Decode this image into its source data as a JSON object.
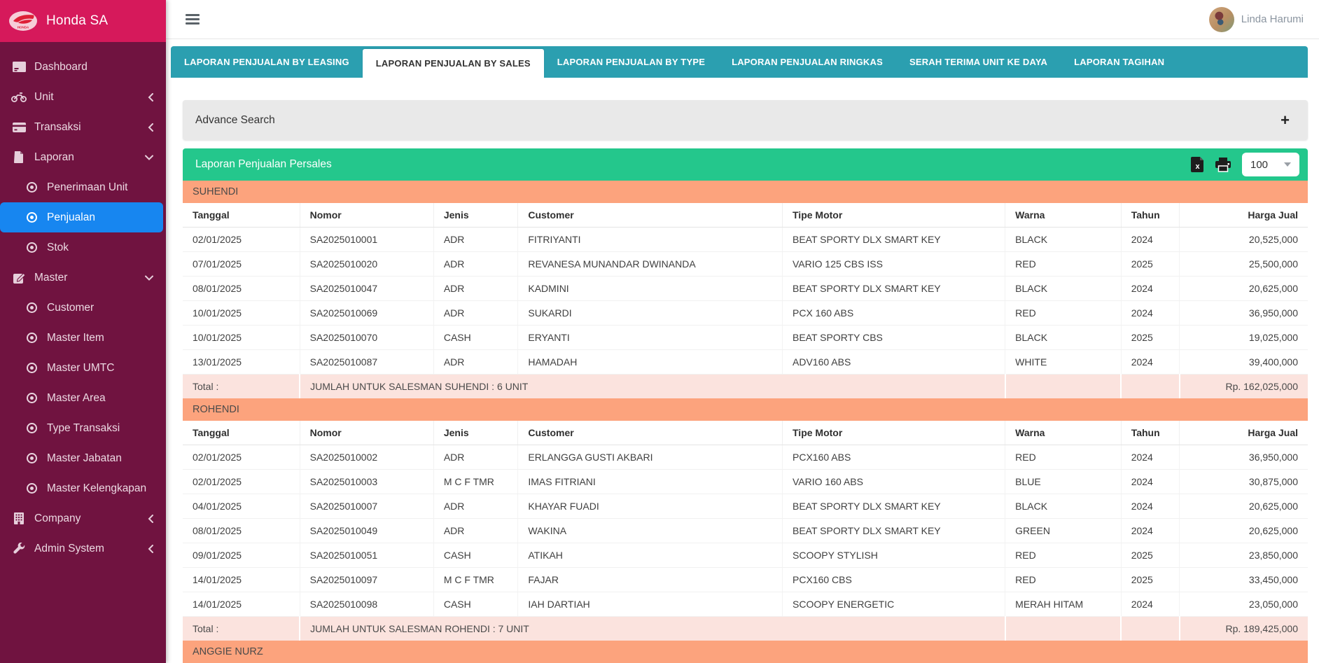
{
  "app": {
    "brand": "Honda SA",
    "user": "Linda Harumi"
  },
  "colors": {
    "sidebar": "#701340",
    "header_pink": "#d6195b",
    "active_blue": "#1786f0",
    "tab_teal": "#2b9fb0",
    "green": "#24c78c",
    "section_orange": "#fca37d",
    "total_pink": "#fbe3de"
  },
  "icons": {
    "hamburger": "menu-icon",
    "search_expand": "+",
    "export": "excel-file-icon",
    "print": "printer-icon",
    "page_size_caret": "chevron-down"
  },
  "sidebar": {
    "items": [
      {
        "label": "Dashboard",
        "icon": "dashboard-icon",
        "type": "top"
      },
      {
        "label": "Unit",
        "icon": "motorcycle-icon",
        "type": "top",
        "chevron": "left"
      },
      {
        "label": "Transaksi",
        "icon": "credit-card-icon",
        "type": "top",
        "chevron": "left"
      },
      {
        "label": "Laporan",
        "icon": "file-icon",
        "type": "top",
        "chevron": "down"
      },
      {
        "label": "Penerimaan Unit",
        "type": "sub"
      },
      {
        "label": "Penjualan",
        "type": "sub",
        "active": true
      },
      {
        "label": "Stok",
        "type": "sub"
      },
      {
        "label": "Master",
        "icon": "edit-icon",
        "type": "top",
        "chevron": "down"
      },
      {
        "label": "Customer",
        "type": "sub"
      },
      {
        "label": "Master Item",
        "type": "sub"
      },
      {
        "label": "Master UMTC",
        "type": "sub"
      },
      {
        "label": "Master Area",
        "type": "sub"
      },
      {
        "label": "Type Transaksi",
        "type": "sub"
      },
      {
        "label": "Master Jabatan",
        "type": "sub"
      },
      {
        "label": "Master Kelengkapan",
        "type": "sub"
      },
      {
        "label": "Company",
        "icon": "building-icon",
        "type": "top",
        "chevron": "left"
      },
      {
        "label": "Admin System",
        "icon": "wrench-icon",
        "type": "top",
        "chevron": "left"
      }
    ]
  },
  "tabs": [
    {
      "label": "LAPORAN PENJUALAN BY LEASING"
    },
    {
      "label": "LAPORAN PENJUALAN BY SALES",
      "active": true
    },
    {
      "label": "LAPORAN PENJUALAN BY TYPE"
    },
    {
      "label": "LAPORAN PENJUALAN RINGKAS"
    },
    {
      "label": "SERAH TERIMA UNIT KE DAYA"
    },
    {
      "label": "LAPORAN TAGIHAN"
    }
  ],
  "search": {
    "title": "Advance Search",
    "expand_glyph": "+"
  },
  "report": {
    "title": "Laporan Penjualan Persales",
    "page_size": "100",
    "columns": [
      "Tanggal",
      "Nomor",
      "Jenis",
      "Customer",
      "Tipe Motor",
      "Warna",
      "Tahun",
      "Harga Jual"
    ],
    "column_widths_pct": [
      10.4,
      11.9,
      7.5,
      23.5,
      19.8,
      10.3,
      5.2,
      11.4
    ],
    "sections": [
      {
        "salesman": "SUHENDI",
        "rows": [
          [
            "02/01/2025",
            "SA2025010001",
            "ADR",
            "FITRIYANTI",
            "BEAT SPORTY DLX SMART KEY",
            "BLACK",
            "2024",
            "20,525,000"
          ],
          [
            "07/01/2025",
            "SA2025010020",
            "ADR",
            "REVANESA MUNANDAR DWINANDA",
            "VARIO 125 CBS ISS",
            "RED",
            "2025",
            "25,500,000"
          ],
          [
            "08/01/2025",
            "SA2025010047",
            "ADR",
            "KADMINI",
            "BEAT SPORTY DLX SMART KEY",
            "BLACK",
            "2024",
            "20,625,000"
          ],
          [
            "10/01/2025",
            "SA2025010069",
            "ADR",
            "SUKARDI",
            "PCX 160 ABS",
            "RED",
            "2024",
            "36,950,000"
          ],
          [
            "10/01/2025",
            "SA2025010070",
            "CASH",
            "ERYANTI",
            "BEAT SPORTY CBS",
            "BLACK",
            "2025",
            "19,025,000"
          ],
          [
            "13/01/2025",
            "SA2025010087",
            "ADR",
            "HAMADAH",
            "ADV160 ABS",
            "WHITE",
            "2024",
            "39,400,000"
          ]
        ],
        "total_label": "Total :",
        "total_text": "JUMLAH UNTUK SALESMAN SUHENDI : 6 UNIT",
        "total_value": "Rp. 162,025,000"
      },
      {
        "salesman": "ROHENDI",
        "rows": [
          [
            "02/01/2025",
            "SA2025010002",
            "ADR",
            "ERLANGGA GUSTI AKBARI",
            "PCX160 ABS",
            "RED",
            "2024",
            "36,950,000"
          ],
          [
            "02/01/2025",
            "SA2025010003",
            "M C F TMR",
            "IMAS FITRIANI",
            "VARIO 160 ABS",
            "BLUE",
            "2024",
            "30,875,000"
          ],
          [
            "04/01/2025",
            "SA2025010007",
            "ADR",
            "KHAYAR FUADI",
            "BEAT SPORTY DLX SMART KEY",
            "BLACK",
            "2024",
            "20,625,000"
          ],
          [
            "08/01/2025",
            "SA2025010049",
            "ADR",
            "WAKINA",
            "BEAT SPORTY DLX SMART KEY",
            "GREEN",
            "2024",
            "20,625,000"
          ],
          [
            "09/01/2025",
            "SA2025010051",
            "CASH",
            "ATIKAH",
            "SCOOPY STYLISH",
            "RED",
            "2025",
            "23,850,000"
          ],
          [
            "14/01/2025",
            "SA2025010097",
            "M C F TMR",
            "FAJAR",
            "PCX160 CBS",
            "RED",
            "2025",
            "33,450,000"
          ],
          [
            "14/01/2025",
            "SA2025010098",
            "CASH",
            "IAH DARTIAH",
            "SCOOPY ENERGETIC",
            "MERAH HITAM",
            "2024",
            "23,050,000"
          ]
        ],
        "total_label": "Total :",
        "total_text": "JUMLAH UNTUK SALESMAN ROHENDI : 7 UNIT",
        "total_value": "Rp. 189,425,000"
      },
      {
        "salesman": "ANGGIE NURZ",
        "rows": []
      }
    ]
  }
}
